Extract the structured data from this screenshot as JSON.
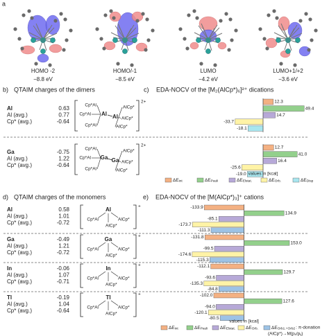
{
  "figure_label": "a",
  "orbitals": [
    {
      "name": "HOMO -2",
      "energy": "−8.8 eV"
    },
    {
      "name": "HOMO/-1",
      "energy": "−8.5 eV"
    },
    {
      "name": "LUMO",
      "energy": "−4.2 eV"
    },
    {
      "name": "LUMO+1/+2",
      "energy": "−3.6 eV"
    }
  ],
  "qtaim_dimers": {
    "label": "b)",
    "title": "QTAIM charges of the dimers",
    "blocks": [
      {
        "rows": [
          [
            "Al",
            "0.63"
          ],
          [
            "Al (avg.)",
            "0.77"
          ],
          [
            "Cp* (avg.)",
            "-0.64"
          ]
        ],
        "structure": {
          "core": [
            "Al",
            "Al"
          ],
          "left": [
            "Cp*Al",
            "Cp*Al",
            "Cp*Al"
          ],
          "right": [
            "AlCp*",
            "AlCp*",
            "AlCp*"
          ],
          "charge": "2+"
        }
      },
      {
        "rows": [
          [
            "Ga",
            "-0.75"
          ],
          [
            "Al (avg.)",
            "1.22"
          ],
          [
            "Cp* (avg.)",
            "-0.64"
          ]
        ],
        "structure": {
          "core": [
            "Ga",
            "Ga"
          ],
          "left": [
            "Cp*Al",
            "Cp*Al",
            "Cp*Al"
          ],
          "right": [
            "AlCp*",
            "AlCp*",
            "AlCp*"
          ],
          "charge": "2+"
        }
      }
    ]
  },
  "qtaim_monomers": {
    "label": "d)",
    "title": "QTAIM charges of the monomers",
    "blocks": [
      {
        "rows": [
          [
            "Al",
            "0.58"
          ],
          [
            "Al (avg.)",
            "1.01"
          ],
          [
            "Cp* (avg.)",
            "-0.72"
          ]
        ],
        "structure": {
          "center": "Al",
          "left": "Cp*Al",
          "right": "AlCp*",
          "bottom": "AlCp*",
          "charge": "+"
        }
      },
      {
        "rows": [
          [
            "Ga",
            "-0.49"
          ],
          [
            "Al (avg.)",
            "1.21"
          ],
          [
            "Cp* (avg.)",
            "-0.72"
          ]
        ],
        "structure": {
          "center": "Ga",
          "left": "Cp*Al",
          "right": "AlCp*",
          "bottom": "AlCp*",
          "charge": "+"
        }
      },
      {
        "rows": [
          [
            "In",
            "-0.06"
          ],
          [
            "Al (avg.)",
            "1.07"
          ],
          [
            "Cp* (avg.)",
            "-0.71"
          ]
        ],
        "structure": {
          "center": "In",
          "left": "Cp*Al",
          "right": "AlCp*",
          "bottom": "AlCp*",
          "charge": "+"
        }
      },
      {
        "rows": [
          [
            "Tl",
            "-0.19"
          ],
          [
            "Al (avg.)",
            "1.04"
          ],
          [
            "Cp* (avg.)",
            "-0.64"
          ]
        ],
        "structure": {
          "center": "Tl",
          "left": "Cp*Al",
          "right": "AlCp*",
          "bottom": "AlCp*",
          "charge": "+"
        }
      }
    ]
  },
  "chart_data": [
    {
      "type": "bar",
      "orientation": "horizontal",
      "label": "c)",
      "title": "EDA-NOCV of the [M₂(AlCp*)₆]²⁺ dications",
      "note": "values in [kcal]",
      "xlim": [
        -45,
        55
      ],
      "series": [
        {
          "name": "ΔEint",
          "color": "#f4b183",
          "values": [
            12.3,
            12.7
          ],
          "value_labels": [
            "12.3",
            "12.7"
          ]
        },
        {
          "name": "ΔEPauli",
          "color": "#93d08c",
          "values": [
            49.4,
            41.0
          ],
          "value_labels": [
            "49.4",
            "41.0"
          ]
        },
        {
          "name": "ΔEElstat.",
          "color": "#b7a9d8",
          "values": [
            14.7,
            16.4
          ],
          "value_labels": [
            "14.7",
            "16.4"
          ]
        },
        {
          "name": "ΔEOrb.",
          "color": "#fff3a6",
          "values": [
            -33.7,
            -25.6
          ],
          "value_labels": [
            "-33.7",
            "-25.6"
          ]
        },
        {
          "name": "ΔEDisp",
          "color": "#a8e6ef",
          "values": [
            -18.1,
            -19.0
          ],
          "value_labels": [
            "-18.1",
            "-19.0"
          ]
        }
      ]
    },
    {
      "type": "bar",
      "orientation": "horizontal",
      "label": "e)",
      "title": "EDA-NOCV of the [M(AlCp*)₃]⁺ cations",
      "note": "values in [kcal]",
      "annotation": ": π-donation",
      "annotation2": "(AlCp*)→M(pₓ/pᵧ)",
      "xlim": [
        -200,
        160
      ],
      "series": [
        {
          "name": "ΔEint",
          "color": "#f4b183",
          "values": [
            -133.9,
            -131.8,
            -112.1,
            -102.0
          ],
          "value_labels": [
            "-133.9",
            "-131.8",
            "-112.1",
            "-102.0"
          ]
        },
        {
          "name": "ΔEPauli",
          "color": "#93d08c",
          "values": [
            134.9,
            153.0,
            129.7,
            127.6
          ],
          "value_labels": [
            "134.9",
            "153.0",
            "129.7",
            "127.6"
          ]
        },
        {
          "name": "ΔEElstat.",
          "color": "#b7a9d8",
          "values": [
            -85.1,
            -99.5,
            -93.6,
            -94.0
          ],
          "value_labels": [
            "-85.1",
            "-99.5",
            "-93.6",
            "-94.0"
          ]
        },
        {
          "name": "ΔEOrb.",
          "color": "#fff3a6",
          "values": [
            -173.7,
            -174.6,
            -135.3,
            -120.1
          ],
          "value_labels": [
            "-173.7",
            "-174.6",
            "-135.3",
            "-120.1"
          ]
        },
        {
          "name": "ΔEOrb1.+Orb2",
          "color": "#9dc3e6",
          "values": [
            -111.3,
            -115.3,
            -84.8,
            -80.5
          ],
          "value_labels": [
            "-111.3",
            "-115.3",
            "-84.8",
            "-80.5"
          ]
        }
      ]
    }
  ]
}
